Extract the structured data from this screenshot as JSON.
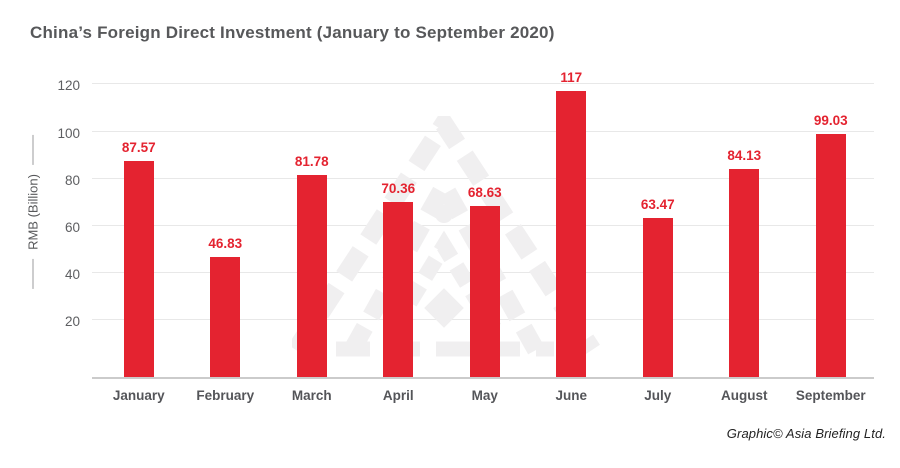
{
  "title": "China’s Foreign Direct Investment (January to September 2020)",
  "credit": "Graphic© Asia Briefing Ltd.",
  "chart_data": {
    "type": "bar",
    "title": "China’s Foreign Direct Investment (January to September 2020)",
    "categories": [
      "January",
      "February",
      "March",
      "April",
      "May",
      "June",
      "July",
      "August",
      "September"
    ],
    "values": [
      87.57,
      46.83,
      81.78,
      70.36,
      68.63,
      117,
      63.47,
      84.13,
      99.03
    ],
    "value_labels": [
      "87.57",
      "46.83",
      "81.78",
      "70.36",
      "68.63",
      "117",
      "63.47",
      "84.13",
      "99.03"
    ],
    "xlabel": "",
    "ylabel": "RMB (Billion)",
    "yticks": [
      20,
      40,
      60,
      80,
      100,
      120
    ],
    "ylim": [
      0,
      120
    ],
    "grid": true,
    "legend": false,
    "bar_color": "#e42330",
    "value_label_color": "#e42330",
    "gridline_color": "#e8e8e8",
    "axis_line_color": "#cbcbcb",
    "watermark_color": "#f0eff0"
  }
}
